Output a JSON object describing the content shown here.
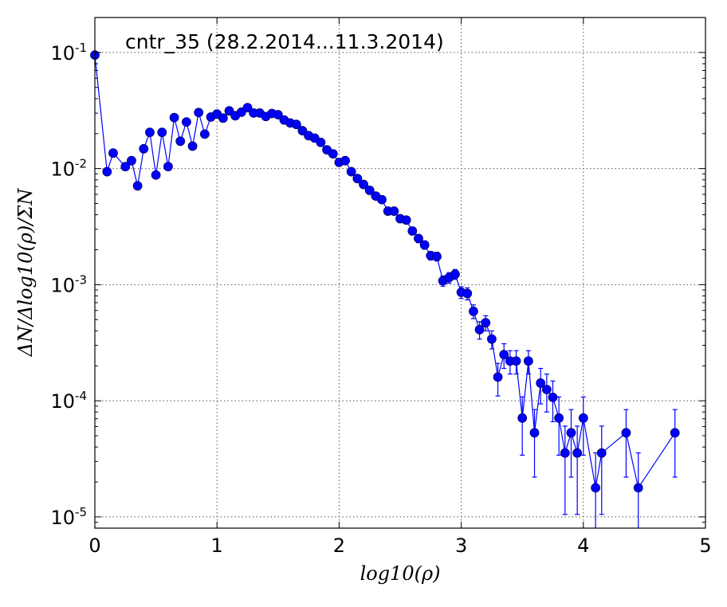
{
  "chart_data": {
    "type": "scatter",
    "title": "cntr_35 (28.2.2014...11.3.2014)",
    "xlabel": "log10(ρ)",
    "ylabel": "ΔN/Δlog10(ρ)/ΣN",
    "xlim": [
      0,
      5
    ],
    "ylim": [
      8e-06,
      0.2
    ],
    "yscale": "log",
    "grid": true,
    "x_ticks": [
      "0",
      "1",
      "2",
      "3",
      "4",
      "5"
    ],
    "y_ticks": [
      {
        "base": "10",
        "exp": "-1",
        "value": 0.1
      },
      {
        "base": "10",
        "exp": "-2",
        "value": 0.01
      },
      {
        "base": "10",
        "exp": "-3",
        "value": 0.001
      },
      {
        "base": "10",
        "exp": "-4",
        "value": 0.0001
      },
      {
        "base": "10",
        "exp": "-5",
        "value": 1e-05
      }
    ],
    "line_color": "#0000ff",
    "marker_color": "#0000ff",
    "series": [
      {
        "x": [
          0.0,
          0.1,
          0.15,
          0.25,
          0.3,
          0.35,
          0.4,
          0.45,
          0.5,
          0.55,
          0.6,
          0.65,
          0.7,
          0.75,
          0.8,
          0.85,
          0.9,
          0.95,
          1.0,
          1.05,
          1.1,
          1.15,
          1.2,
          1.25,
          1.3,
          1.35,
          1.4,
          1.45,
          1.5,
          1.55,
          1.6,
          1.65,
          1.7,
          1.75,
          1.8,
          1.85,
          1.9,
          1.95,
          2.0,
          2.05,
          2.1,
          2.15,
          2.2,
          2.25,
          2.3,
          2.35,
          2.4,
          2.45,
          2.5,
          2.55,
          2.6,
          2.65,
          2.7,
          2.75,
          2.8,
          2.85,
          2.9,
          2.95,
          3.0,
          3.05,
          3.1,
          3.15,
          3.2,
          3.25,
          3.3,
          3.35,
          3.4,
          3.45,
          3.5,
          3.55,
          3.6,
          3.65,
          3.7,
          3.75,
          3.8,
          3.85,
          3.9,
          3.95,
          4.0,
          4.1,
          4.15,
          4.35,
          4.45,
          4.75
        ],
        "y": [
          0.095,
          0.0094,
          0.0136,
          0.0104,
          0.0117,
          0.0071,
          0.0148,
          0.0205,
          0.0088,
          0.0205,
          0.0104,
          0.0275,
          0.0172,
          0.0252,
          0.0156,
          0.0304,
          0.0198,
          0.0278,
          0.0295,
          0.0272,
          0.0314,
          0.0285,
          0.0306,
          0.0335,
          0.0301,
          0.0301,
          0.0281,
          0.0298,
          0.0291,
          0.0262,
          0.0247,
          0.024,
          0.0212,
          0.0192,
          0.0183,
          0.0168,
          0.0145,
          0.0134,
          0.0113,
          0.0117,
          0.0094,
          0.0082,
          0.0073,
          0.0065,
          0.0058,
          0.0054,
          0.0043,
          0.0043,
          0.0037,
          0.0036,
          0.0029,
          0.0025,
          0.0022,
          0.00178,
          0.00175,
          0.00108,
          0.00115,
          0.00123,
          0.00086,
          0.00084,
          0.00059,
          0.00041,
          0.00047,
          0.00034,
          0.00016,
          0.00025,
          0.00022,
          0.00022,
          7.1e-05,
          0.00022,
          5.3e-05,
          0.000142,
          0.000125,
          0.000107,
          7.1e-05,
          3.55e-05,
          5.3e-05,
          3.55e-05,
          7.1e-05,
          1.78e-05,
          3.55e-05,
          5.3e-05,
          1.78e-05,
          5.3e-05
        ],
        "err": [
          0.002,
          0.0006,
          0.0007,
          0.0006,
          0.0006,
          0.0005,
          0.0007,
          0.0008,
          0.0005,
          0.0008,
          0.0006,
          0.0009,
          0.0007,
          0.0009,
          0.0007,
          0.001,
          0.0008,
          0.0009,
          0.0009,
          0.0009,
          0.001,
          0.0009,
          0.001,
          0.001,
          0.001,
          0.001,
          0.0009,
          0.001,
          0.0009,
          0.0009,
          0.0008,
          0.0008,
          0.0008,
          0.0007,
          0.0007,
          0.0007,
          0.0006,
          0.0006,
          0.0005,
          0.0005,
          0.0005,
          0.0004,
          0.0004,
          0.0004,
          0.0003,
          0.0003,
          0.0003,
          0.0003,
          0.00025,
          0.00025,
          0.0002,
          0.0002,
          0.00018,
          0.00015,
          0.00015,
          0.00011,
          0.00012,
          0.00012,
          0.0001,
          0.0001,
          8e-05,
          7e-05,
          7e-05,
          6e-05,
          5e-05,
          6e-05,
          5e-05,
          5e-05,
          3.7e-05,
          5e-05,
          3.1e-05,
          4.8e-05,
          4.5e-05,
          4.1e-05,
          3.7e-05,
          2.5e-05,
          3.1e-05,
          2.5e-05,
          3.7e-05,
          1.78e-05,
          2.5e-05,
          3.1e-05,
          1.78e-05,
          3.1e-05
        ]
      }
    ]
  }
}
